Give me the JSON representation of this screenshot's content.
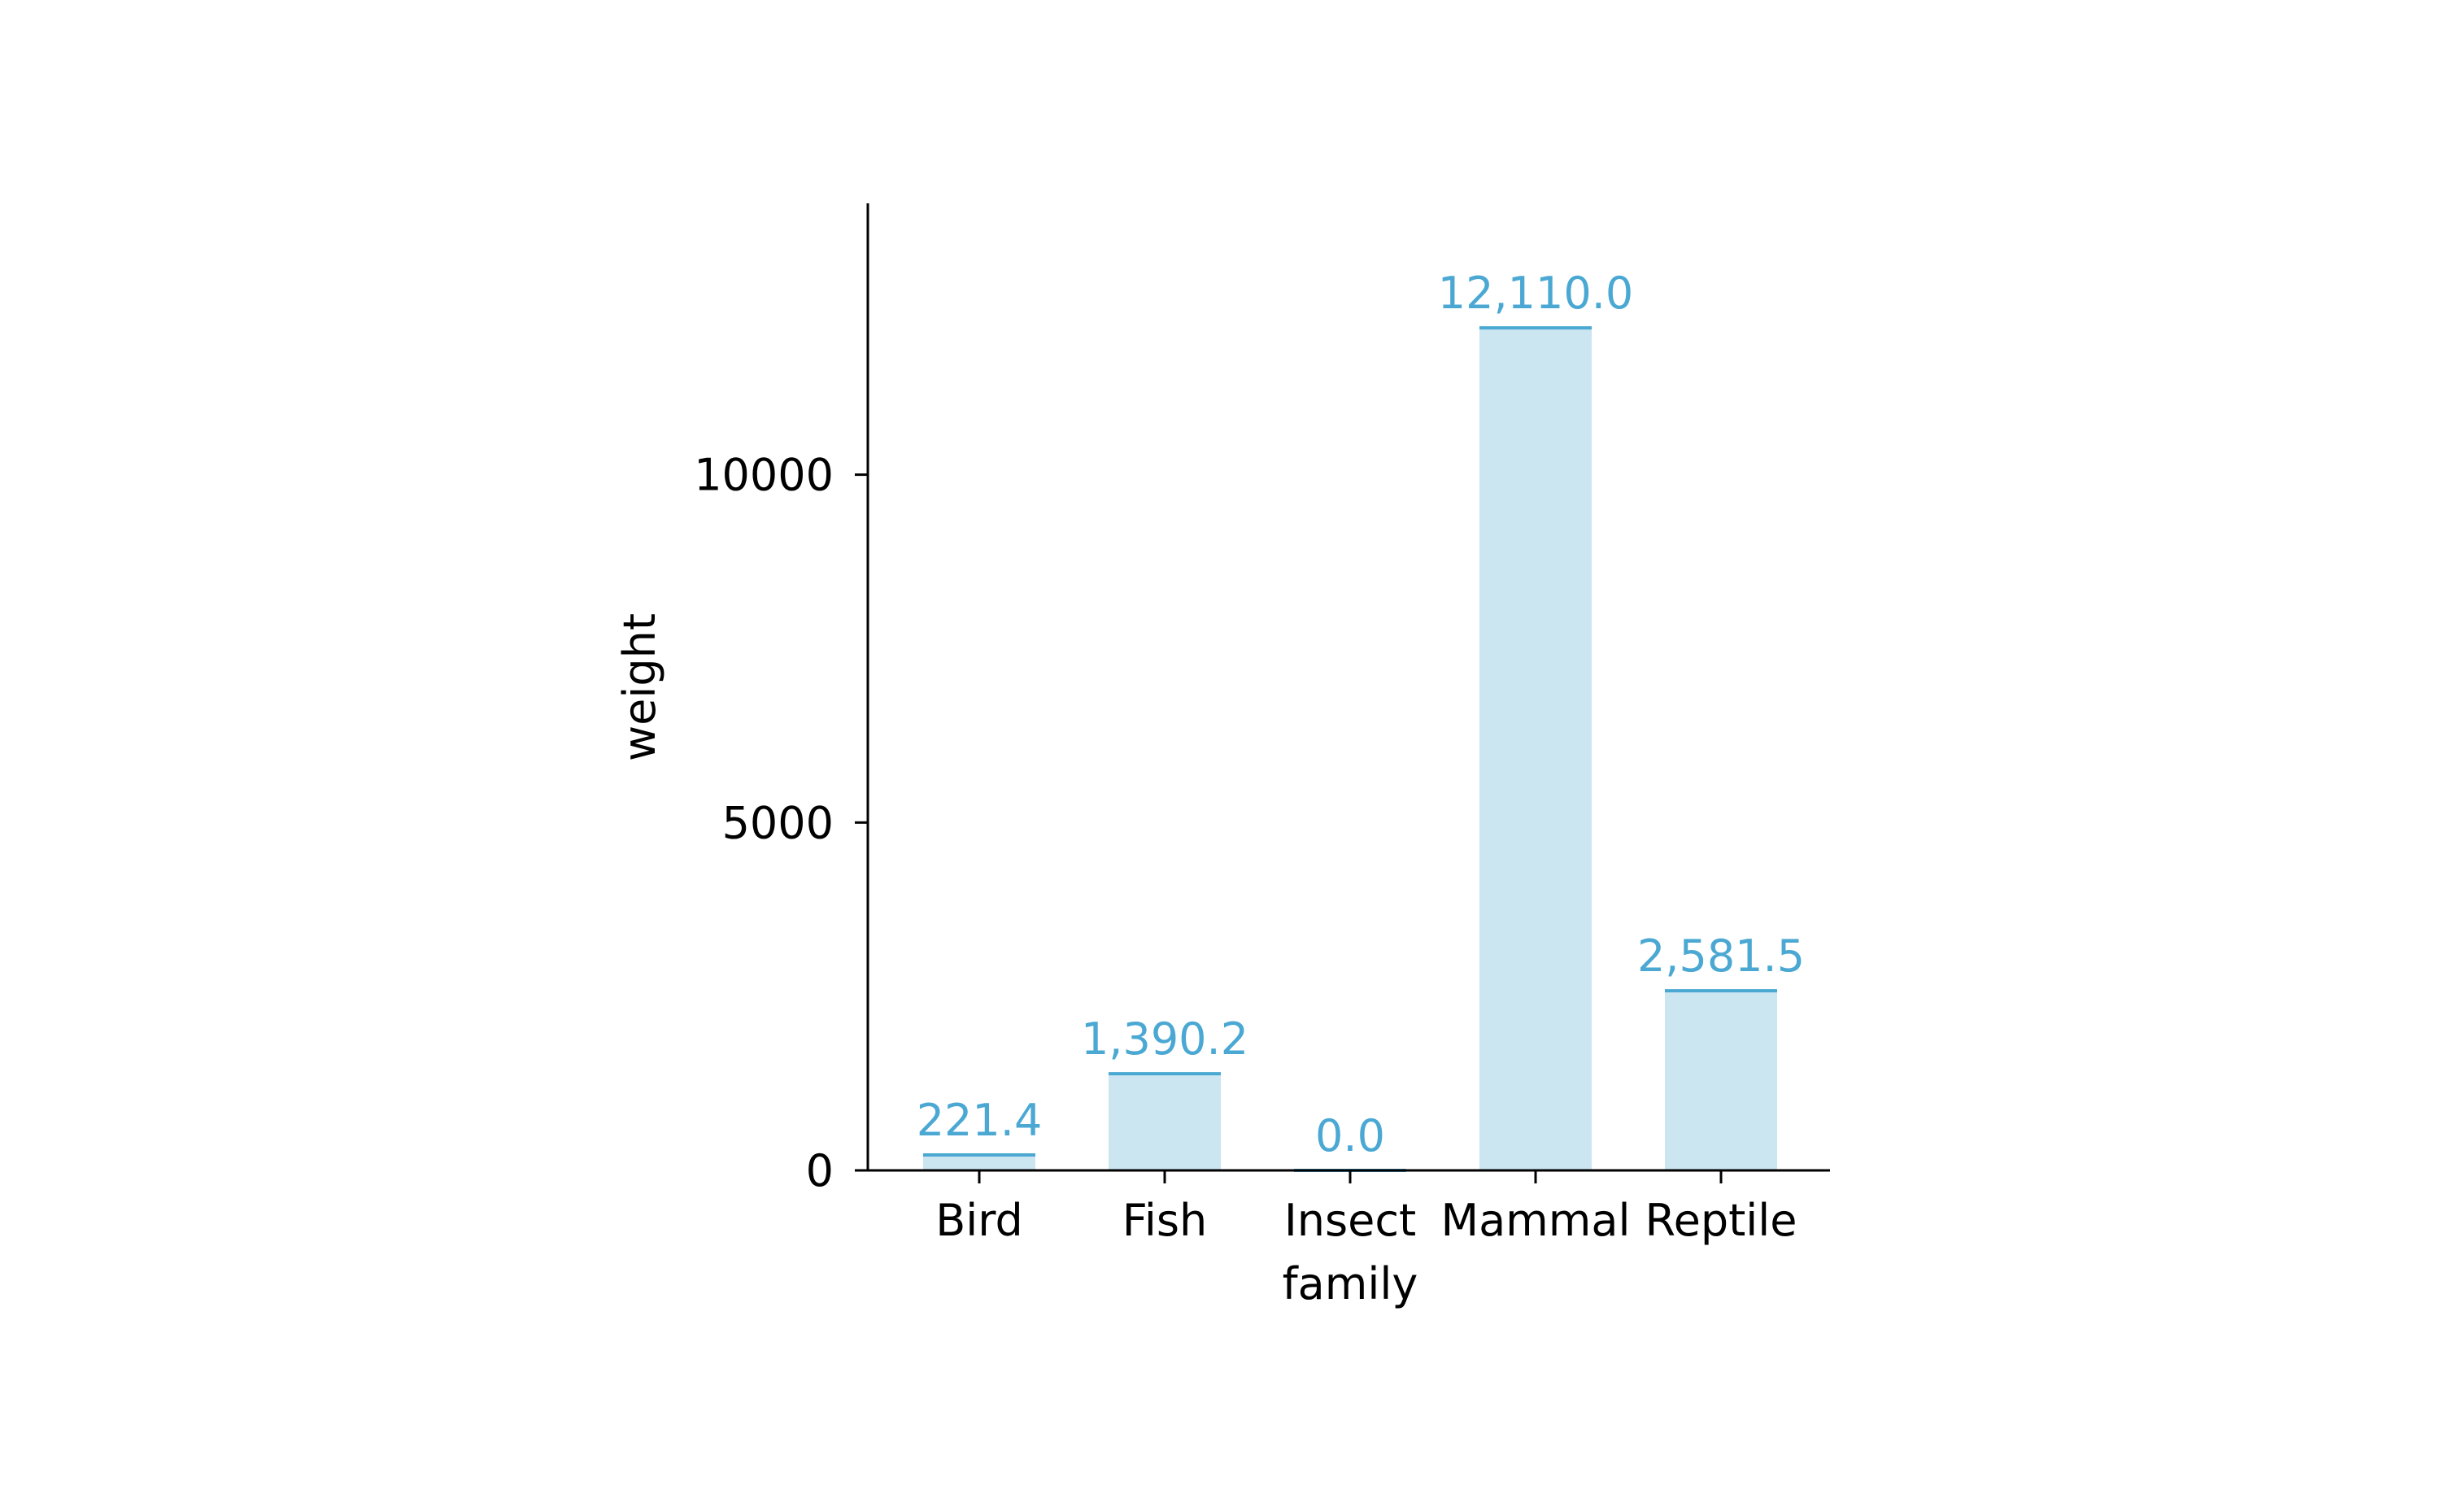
{
  "chart_data": {
    "type": "bar",
    "categories": [
      "Bird",
      "Fish",
      "Insect",
      "Mammal",
      "Reptile"
    ],
    "values": [
      221.4,
      1390.2,
      0.0,
      12110.0,
      2581.5
    ],
    "value_labels": [
      "221.4",
      "1,390.2",
      "0.0",
      "12,110.0",
      "2,581.5"
    ],
    "xlabel": "family",
    "ylabel": "weight",
    "yticks": [
      0,
      5000,
      10000
    ],
    "ytick_labels": [
      "0",
      "5000",
      "10000"
    ],
    "ylim": [
      0,
      13900
    ],
    "grid": false,
    "colors": {
      "bar_fill": "#cbe5f1",
      "bar_line": "#4aa8d3",
      "label": "#4aa8d3",
      "axis": "#000000"
    }
  }
}
